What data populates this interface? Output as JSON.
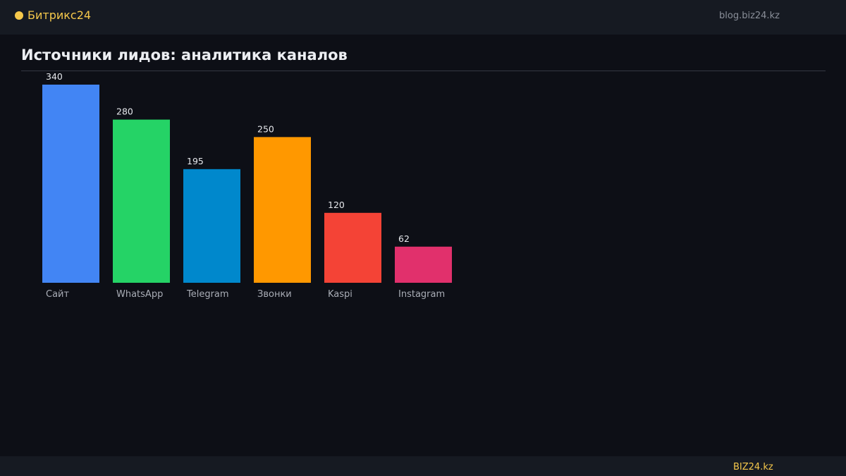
{
  "header": {
    "brand": "Битрикс24",
    "url": "blog.biz24.kz"
  },
  "page": {
    "title": "Источники лидов: аналитика каналов"
  },
  "footer": {
    "brand": "BIZ24.kz"
  },
  "colors": {
    "accent": "#f5c84b",
    "background": "#0d0f16"
  },
  "chart_data": {
    "type": "bar",
    "title": "Источники лидов: аналитика каналов",
    "categories": [
      "Сайт",
      "WhatsApp",
      "Telegram",
      "Звонки",
      "Kaspi",
      "Instagram"
    ],
    "values": [
      340,
      280,
      195,
      250,
      120,
      62
    ],
    "colors": [
      "#4285f4",
      "#25d366",
      "#0088cc",
      "#ff9800",
      "#f44336",
      "#e1306c"
    ],
    "ylim": [
      0,
      340
    ],
    "grid": false,
    "legend": "none"
  }
}
